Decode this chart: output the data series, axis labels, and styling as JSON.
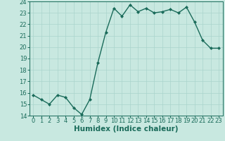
{
  "x": [
    0,
    1,
    2,
    3,
    4,
    5,
    6,
    7,
    8,
    9,
    10,
    11,
    12,
    13,
    14,
    15,
    16,
    17,
    18,
    19,
    20,
    21,
    22,
    23
  ],
  "y": [
    15.8,
    15.4,
    15.0,
    15.8,
    15.6,
    14.7,
    14.1,
    15.4,
    18.6,
    21.3,
    23.4,
    22.7,
    23.7,
    23.1,
    23.4,
    23.0,
    23.1,
    23.3,
    23.0,
    23.5,
    22.2,
    20.6,
    19.9,
    19.9
  ],
  "line_color": "#1a6b5a",
  "marker": "D",
  "marker_size": 2.0,
  "bg_color": "#c8e8e0",
  "grid_color": "#aad4cc",
  "xlabel": "Humidex (Indice chaleur)",
  "ylim": [
    14,
    24
  ],
  "xlim": [
    -0.5,
    23.5
  ],
  "yticks": [
    14,
    15,
    16,
    17,
    18,
    19,
    20,
    21,
    22,
    23,
    24
  ],
  "xticks": [
    0,
    1,
    2,
    3,
    4,
    5,
    6,
    7,
    8,
    9,
    10,
    11,
    12,
    13,
    14,
    15,
    16,
    17,
    18,
    19,
    20,
    21,
    22,
    23
  ],
  "tick_color": "#1a6b5a",
  "label_color": "#1a6b5a",
  "xlabel_fontsize": 7.5,
  "tick_fontsize": 6.0,
  "linewidth": 1.0
}
